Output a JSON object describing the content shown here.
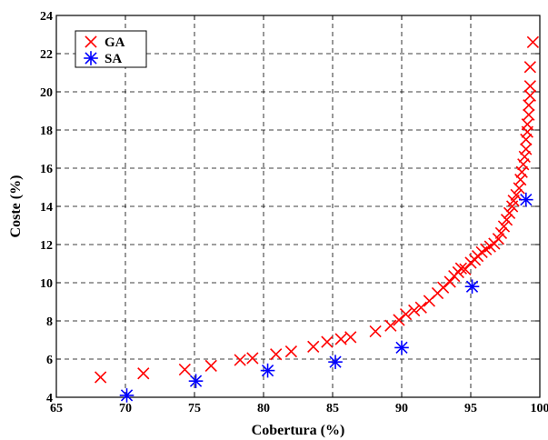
{
  "chart_data": {
    "type": "scatter",
    "xlabel": "Cobertura (%)",
    "ylabel": "Coste (%)",
    "xlim": [
      65,
      100
    ],
    "ylim": [
      4,
      24
    ],
    "xticks": [
      65,
      70,
      75,
      80,
      85,
      90,
      95,
      100
    ],
    "yticks": [
      4,
      6,
      8,
      10,
      12,
      14,
      16,
      18,
      20,
      22,
      24
    ],
    "grid": true,
    "legend_position": "top-left",
    "series": [
      {
        "name": "GA",
        "marker": "x",
        "color": "#ff0000",
        "points": [
          [
            68.2,
            5.05
          ],
          [
            71.3,
            5.25
          ],
          [
            74.3,
            5.45
          ],
          [
            76.2,
            5.65
          ],
          [
            78.3,
            5.95
          ],
          [
            79.2,
            6.05
          ],
          [
            80.9,
            6.25
          ],
          [
            82.0,
            6.4
          ],
          [
            83.6,
            6.65
          ],
          [
            84.6,
            6.9
          ],
          [
            85.6,
            7.05
          ],
          [
            86.3,
            7.15
          ],
          [
            88.1,
            7.45
          ],
          [
            89.2,
            7.75
          ],
          [
            89.8,
            8.05
          ],
          [
            90.3,
            8.35
          ],
          [
            90.9,
            8.55
          ],
          [
            91.4,
            8.7
          ],
          [
            92.0,
            9.05
          ],
          [
            92.6,
            9.45
          ],
          [
            93.0,
            9.75
          ],
          [
            93.5,
            10.05
          ],
          [
            93.8,
            10.35
          ],
          [
            94.1,
            10.55
          ],
          [
            94.3,
            10.75
          ],
          [
            94.6,
            10.7
          ],
          [
            95.0,
            11.05
          ],
          [
            95.3,
            11.2
          ],
          [
            95.5,
            11.4
          ],
          [
            95.8,
            11.6
          ],
          [
            96.1,
            11.75
          ],
          [
            96.4,
            11.9
          ],
          [
            96.7,
            12.05
          ],
          [
            97.0,
            12.3
          ],
          [
            97.2,
            12.6
          ],
          [
            97.4,
            12.95
          ],
          [
            97.6,
            13.3
          ],
          [
            97.8,
            13.65
          ],
          [
            98.0,
            14.0
          ],
          [
            98.1,
            14.3
          ],
          [
            98.3,
            14.6
          ],
          [
            98.5,
            14.95
          ],
          [
            98.6,
            15.4
          ],
          [
            98.7,
            15.8
          ],
          [
            98.8,
            16.2
          ],
          [
            98.9,
            16.6
          ],
          [
            99.0,
            17.0
          ],
          [
            99.0,
            17.5
          ],
          [
            99.1,
            17.9
          ],
          [
            99.1,
            18.3
          ],
          [
            99.2,
            18.8
          ],
          [
            99.2,
            19.3
          ],
          [
            99.3,
            19.8
          ],
          [
            99.3,
            20.3
          ],
          [
            99.3,
            21.3
          ],
          [
            99.5,
            22.6
          ]
        ]
      },
      {
        "name": "SA",
        "marker": "asterisk",
        "color": "#0000ff",
        "points": [
          [
            70.1,
            4.1
          ],
          [
            75.1,
            4.85
          ],
          [
            80.3,
            5.4
          ],
          [
            85.2,
            5.85
          ],
          [
            90.0,
            6.6
          ],
          [
            95.1,
            9.8
          ],
          [
            99.0,
            14.35
          ]
        ]
      }
    ]
  }
}
